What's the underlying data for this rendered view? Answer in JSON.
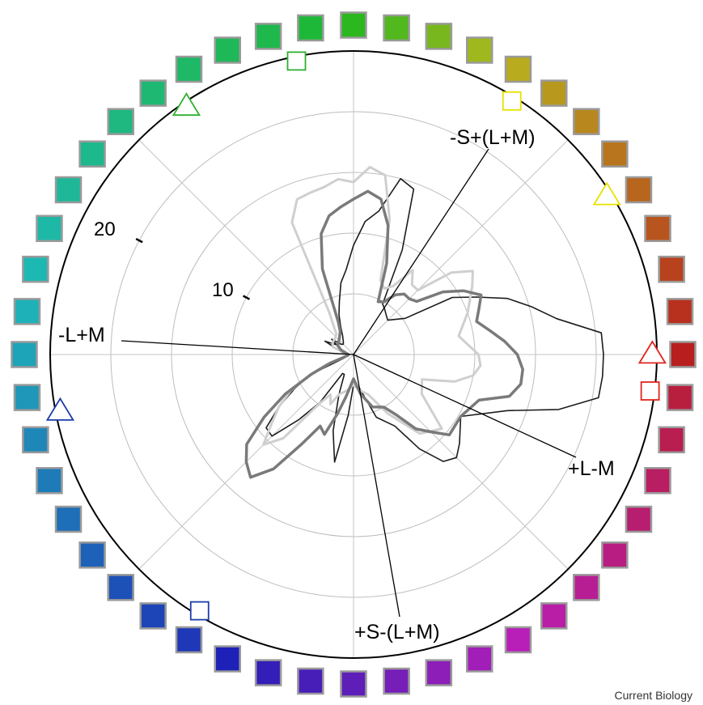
{
  "chart_data": {
    "type": "polar-line",
    "credit": "Current Biology",
    "radial_max": 25,
    "radial_ticks": [
      {
        "value": 10,
        "label": "10"
      },
      {
        "value": 20,
        "label": "20"
      }
    ],
    "grid_radii": [
      5,
      10,
      15,
      20,
      25
    ],
    "grid_spoke_angles_deg": [
      0,
      45,
      90,
      135,
      180,
      225,
      270,
      315
    ],
    "axes": [
      {
        "name": "minus-l-plus-m",
        "label": "-L+M",
        "angle_deg": 177
      },
      {
        "name": "s-minus-lm",
        "label": "-S+(L+M)",
        "angle_deg": 62
      },
      {
        "name": "plus-l-minus-m",
        "label": "+L-M",
        "angle_deg": -24
      },
      {
        "name": "plus-s-minus-lm",
        "label": "+S-(L+M)",
        "angle_deg": -82
      }
    ],
    "series": [
      {
        "color": "#1c1c1c",
        "width": 1.6,
        "points": [
          [
            0,
            20.6
          ],
          [
            5,
            20.5
          ],
          [
            10,
            17
          ],
          [
            15,
            15.2
          ],
          [
            20,
            13.5
          ],
          [
            25,
            11.2
          ],
          [
            30,
            9.4
          ],
          [
            35,
            5.2
          ],
          [
            40,
            4.5
          ],
          [
            45,
            4
          ],
          [
            50,
            4.2
          ],
          [
            55,
            4.5
          ],
          [
            60,
            4.8
          ],
          [
            65,
            9.5
          ],
          [
            70,
            14.5
          ],
          [
            75,
            15
          ],
          [
            80,
            12
          ],
          [
            85,
            11
          ],
          [
            90,
            9
          ],
          [
            95,
            7
          ],
          [
            100,
            6
          ],
          [
            105,
            4.5
          ],
          [
            110,
            3.5
          ],
          [
            115,
            2.5
          ],
          [
            120,
            1.8
          ],
          [
            125,
            1.5
          ],
          [
            130,
            1.3
          ],
          [
            135,
            1.2
          ],
          [
            140,
            1.3
          ],
          [
            145,
            2.2
          ],
          [
            150,
            1.6
          ],
          [
            155,
            2.6
          ],
          [
            160,
            1.6
          ],
          [
            165,
            1.2
          ],
          [
            170,
            0.9
          ],
          [
            175,
            0.6
          ],
          [
            180,
            0.4
          ],
          [
            190,
            0.6
          ],
          [
            200,
            0.8
          ],
          [
            205,
            4
          ],
          [
            210,
            5.6
          ],
          [
            215,
            7.5
          ],
          [
            220,
            9.4
          ],
          [
            225,
            9.5
          ],
          [
            230,
            7
          ],
          [
            235,
            4.8
          ],
          [
            240,
            1.8
          ],
          [
            245,
            1.8
          ],
          [
            250,
            3.5
          ],
          [
            255,
            6.5
          ],
          [
            260,
            9
          ],
          [
            265,
            5
          ],
          [
            270,
            2.5
          ],
          [
            280,
            2.8
          ],
          [
            290,
            5.5
          ],
          [
            300,
            6.8
          ],
          [
            305,
            9.5
          ],
          [
            310,
            11.5
          ],
          [
            315,
            12
          ],
          [
            320,
            11.4
          ],
          [
            330,
            10.2
          ],
          [
            340,
            13.5
          ],
          [
            345,
            17.5
          ],
          [
            350,
            20.5
          ],
          [
            355,
            20.6
          ]
        ]
      },
      {
        "color": "#cfcfcf",
        "width": 3,
        "points": [
          [
            0,
            10.3
          ],
          [
            10,
            8.8
          ],
          [
            20,
            10
          ],
          [
            30,
            11.3
          ],
          [
            35,
            12
          ],
          [
            40,
            10.5
          ],
          [
            45,
            7.5
          ],
          [
            50,
            7.5
          ],
          [
            55,
            8.5
          ],
          [
            60,
            6.5
          ],
          [
            65,
            6
          ],
          [
            70,
            6.5
          ],
          [
            75,
            11.5
          ],
          [
            80,
            15
          ],
          [
            85,
            15.5
          ],
          [
            90,
            14.2
          ],
          [
            95,
            14.5
          ],
          [
            100,
            14
          ],
          [
            105,
            13.8
          ],
          [
            110,
            13.6
          ],
          [
            115,
            12
          ],
          [
            120,
            4
          ],
          [
            130,
            2.2
          ],
          [
            140,
            2
          ],
          [
            150,
            2
          ],
          [
            160,
            1.8
          ],
          [
            170,
            0.7
          ],
          [
            180,
            0.5
          ],
          [
            190,
            0.5
          ],
          [
            200,
            2.3
          ],
          [
            205,
            4
          ],
          [
            210,
            6
          ],
          [
            215,
            7.5
          ],
          [
            220,
            8.8
          ],
          [
            225,
            10.5
          ],
          [
            230,
            9
          ],
          [
            235,
            5
          ],
          [
            240,
            3.8
          ],
          [
            245,
            4.5
          ],
          [
            250,
            3.5
          ],
          [
            260,
            3
          ],
          [
            270,
            2.5
          ],
          [
            280,
            3
          ],
          [
            290,
            3.5
          ],
          [
            300,
            5.6
          ],
          [
            310,
            8.5
          ],
          [
            320,
            9.5
          ],
          [
            330,
            6.5
          ],
          [
            340,
            6
          ],
          [
            345,
            8.6
          ],
          [
            350,
            10
          ],
          [
            355,
            10.5
          ]
        ]
      },
      {
        "color": "#7a7a7a",
        "width": 3.5,
        "points": [
          [
            0,
            13.5
          ],
          [
            5,
            12.5
          ],
          [
            10,
            11.4
          ],
          [
            15,
            10.5
          ],
          [
            20,
            11
          ],
          [
            25,
            11.6
          ],
          [
            30,
            10.5
          ],
          [
            35,
            9
          ],
          [
            40,
            6.8
          ],
          [
            45,
            6.5
          ],
          [
            50,
            6.5
          ],
          [
            55,
            6
          ],
          [
            60,
            5
          ],
          [
            65,
            4.8
          ],
          [
            70,
            8
          ],
          [
            75,
            11
          ],
          [
            80,
            13
          ],
          [
            85,
            13.5
          ],
          [
            90,
            12.8
          ],
          [
            95,
            12.2
          ],
          [
            100,
            11.6
          ],
          [
            105,
            10.3
          ],
          [
            110,
            7.5
          ],
          [
            115,
            3
          ],
          [
            120,
            2.2
          ],
          [
            130,
            1.8
          ],
          [
            140,
            1.6
          ],
          [
            150,
            1.5
          ],
          [
            160,
            1.1
          ],
          [
            170,
            0.6
          ],
          [
            180,
            0.4
          ],
          [
            190,
            0.5
          ],
          [
            200,
            2
          ],
          [
            205,
            3.8
          ],
          [
            210,
            6.5
          ],
          [
            215,
            9
          ],
          [
            220,
            11.5
          ],
          [
            225,
            12.5
          ],
          [
            230,
            13.2
          ],
          [
            235,
            11.5
          ],
          [
            240,
            8.5
          ],
          [
            245,
            6.5
          ],
          [
            250,
            7
          ],
          [
            255,
            5
          ],
          [
            260,
            3.5
          ],
          [
            270,
            2
          ],
          [
            280,
            3.3
          ],
          [
            290,
            4.6
          ],
          [
            300,
            5
          ],
          [
            305,
            6
          ],
          [
            310,
            8
          ],
          [
            315,
            9
          ],
          [
            320,
            10.3
          ],
          [
            330,
            10.2
          ],
          [
            340,
            11
          ],
          [
            345,
            13.3
          ],
          [
            350,
            14
          ],
          [
            355,
            14
          ]
        ]
      }
    ]
  },
  "markers": [
    {
      "shape": "triangle",
      "angle_deg": 0,
      "color": "#e0251c"
    },
    {
      "shape": "square",
      "angle_deg": -7,
      "color": "#e0251c"
    },
    {
      "shape": "triangle",
      "angle_deg": 32,
      "color": "#e8e000"
    },
    {
      "shape": "square",
      "angle_deg": 58,
      "color": "#e8e000"
    },
    {
      "shape": "square",
      "angle_deg": 101,
      "color": "#2fb02f"
    },
    {
      "shape": "triangle",
      "angle_deg": 124,
      "color": "#2fb02f"
    },
    {
      "shape": "triangle",
      "angle_deg": 191,
      "color": "#1c3da8"
    },
    {
      "shape": "square",
      "angle_deg": 239,
      "color": "#1c3da8"
    }
  ],
  "color_ring": {
    "count": 48,
    "start_angle_deg": 0,
    "step_deg": 7.5,
    "border": "#9a9a9a"
  }
}
